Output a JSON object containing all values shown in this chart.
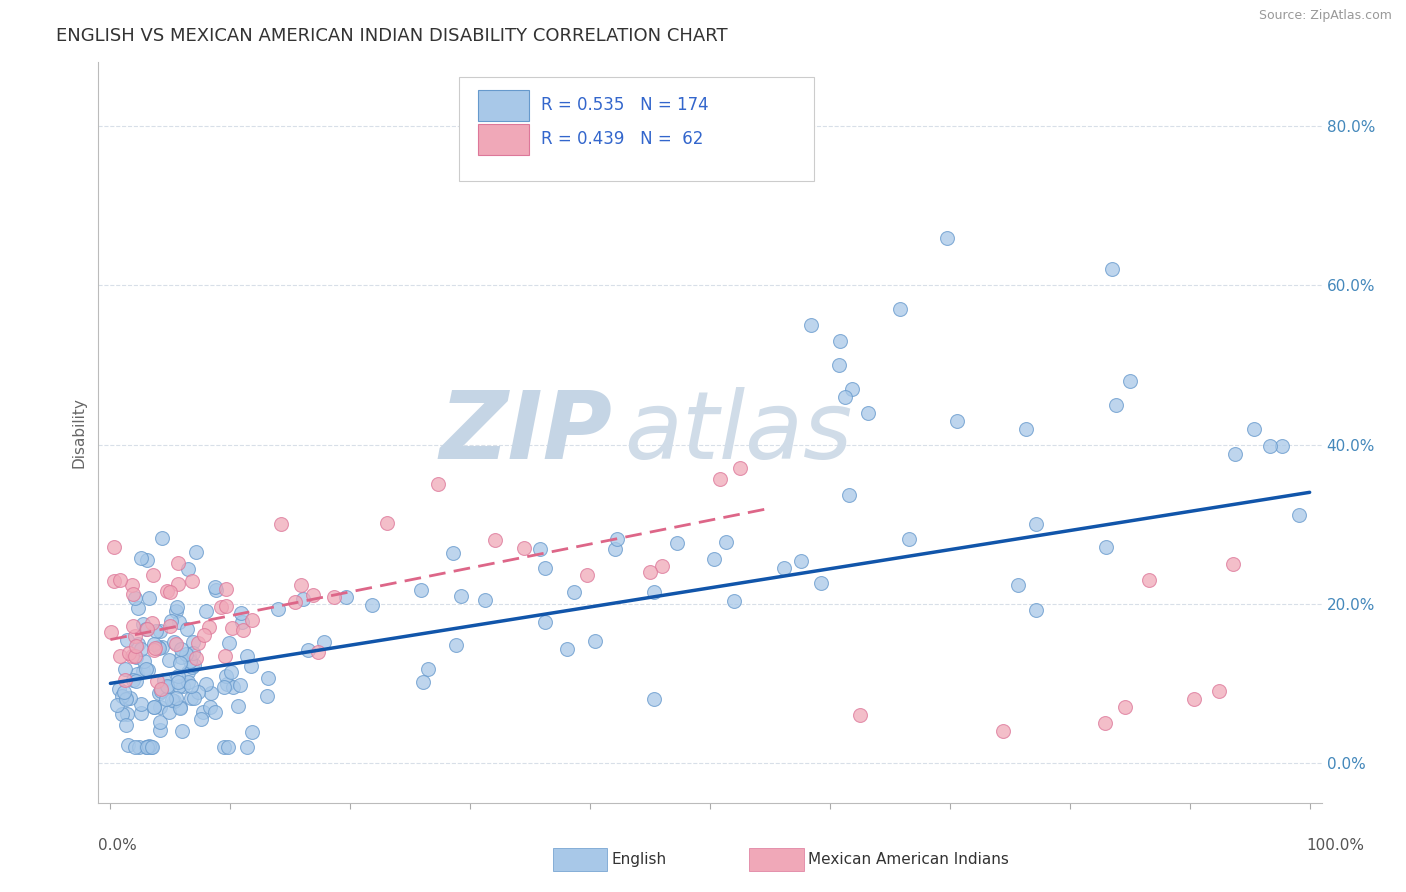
{
  "title": "ENGLISH VS MEXICAN AMERICAN INDIAN DISABILITY CORRELATION CHART",
  "source": "Source: ZipAtlas.com",
  "ylabel": "Disability",
  "english_R": 0.535,
  "english_N": 174,
  "mexican_R": 0.439,
  "mexican_N": 62,
  "english_color_fill": "#a8c8e8",
  "english_color_edge": "#6699cc",
  "mexican_color_fill": "#f0a8b8",
  "mexican_color_edge": "#dd7799",
  "trend_english_color": "#1155aa",
  "trend_mexican_color": "#dd6688",
  "watermark_zip_color": "#c0d0e0",
  "watermark_atlas_color": "#d0dde8",
  "background_color": "#ffffff",
  "legend_text_color": "#3366cc",
  "grid_color": "#d8dfe8",
  "ytick_labels": [
    "0.0%",
    "20.0%",
    "40.0%",
    "60.0%",
    "80.0%"
  ],
  "ytick_values": [
    0.0,
    0.2,
    0.4,
    0.6,
    0.8
  ],
  "x_min": 0.0,
  "x_max": 1.0,
  "y_min": -0.05,
  "y_max": 0.88,
  "eng_trend_x0": 0.0,
  "eng_trend_y0": 0.1,
  "eng_trend_x1": 1.0,
  "eng_trend_y1": 0.34,
  "mex_trend_x0": 0.0,
  "mex_trend_y0": 0.155,
  "mex_trend_x1": 0.55,
  "mex_trend_y1": 0.32
}
